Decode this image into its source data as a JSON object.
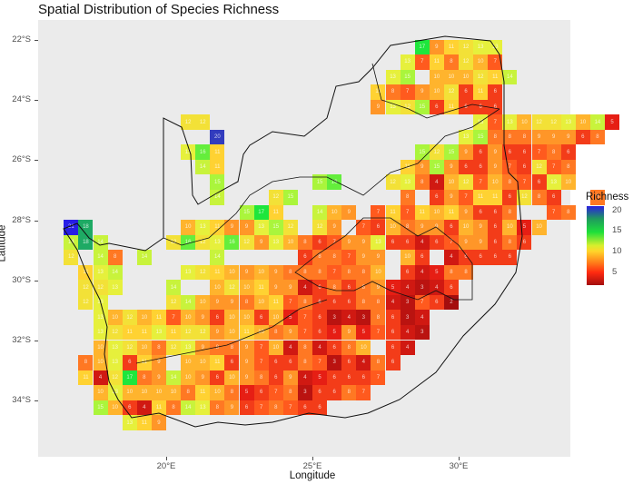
{
  "chart_data": {
    "type": "heatmap",
    "title": "Spatial Distribution of Species Richness",
    "xlabel": "Longitude",
    "ylabel": "Latitude",
    "x_ticks": [
      "20°E",
      "25°E",
      "30°E"
    ],
    "y_ticks": [
      "22°S",
      "24°S",
      "26°S",
      "28°S",
      "30°S",
      "32°S",
      "34°S"
    ],
    "xlim": [
      15.9,
      34.1
    ],
    "ylim_south": [
      21.3,
      35.8
    ],
    "cell_size_deg": 0.5,
    "legend": {
      "title": "Richness",
      "ticks": [
        5,
        10,
        15,
        20
      ],
      "colors_low_to_high": [
        "#a40e0e",
        "#ff2a10",
        "#ff7a1a",
        "#ffd52a",
        "#d8ef2d",
        "#1ee03a",
        "#1f9a5e",
        "#2a1fe0"
      ]
    },
    "grid_origin": {
      "lon_west": 16.5,
      "lat_south_top": 22.0
    },
    "rows": [
      {
        "lat": "22.0-22.5S",
        "start_col": 24,
        "values": [
          17,
          9,
          11,
          12,
          13,
          13
        ]
      },
      {
        "lat": "22.5-23.0S",
        "start_col": 23,
        "values": [
          13,
          7,
          11,
          8,
          12,
          10,
          7
        ]
      },
      {
        "lat": "23.0-23.5S",
        "start_col": 22,
        "values": [
          13,
          15,
          null,
          10,
          10,
          10,
          12,
          11,
          14
        ]
      },
      {
        "lat": "23.5-24.0S",
        "start_col": 21,
        "values": [
          11,
          8,
          7,
          9,
          10,
          12,
          6,
          11,
          6
        ]
      },
      {
        "lat": "24.0-24.5S",
        "start_col": 21,
        "values": [
          9,
          13,
          12,
          15,
          6,
          11,
          6,
          6,
          6
        ]
      },
      {
        "lat": "24.5-25.0S",
        "start_col": 8,
        "values": [
          12,
          12,
          null,
          null,
          null,
          null,
          null,
          null,
          null,
          null,
          null,
          null,
          null,
          null,
          null,
          null,
          null,
          null,
          null,
          null,
          13,
          7,
          13,
          10,
          12,
          12,
          13,
          10,
          14,
          5
        ]
      },
      {
        "lat": "25.0-25.5S",
        "start_col": 10,
        "values": [
          20,
          null,
          null,
          null,
          null,
          null,
          null,
          null,
          null,
          null,
          null,
          null,
          null,
          null,
          null,
          null,
          null,
          13,
          15,
          8,
          8,
          8,
          9,
          9,
          9,
          6,
          8
        ]
      },
      {
        "lat": "25.5-26.0S",
        "start_col": 8,
        "values": [
          13,
          16,
          11,
          null,
          null,
          null,
          null,
          null,
          null,
          null,
          null,
          null,
          null,
          null,
          null,
          null,
          15,
          12,
          15,
          9,
          6,
          9,
          6,
          6,
          7,
          8,
          6
        ]
      },
      {
        "lat": "26.0-26.5S",
        "start_col": 9,
        "values": [
          14,
          11,
          null,
          null,
          null,
          null,
          null,
          null,
          null,
          null,
          null,
          null,
          null,
          null,
          11,
          9,
          15,
          9,
          6,
          6,
          9,
          7,
          6,
          12,
          7,
          8
        ]
      },
      {
        "lat": "26.5-27.0S",
        "start_col": 10,
        "values": [
          15,
          null,
          null,
          null,
          null,
          null,
          null,
          15,
          16,
          null,
          null,
          null,
          12,
          13,
          8,
          4,
          10,
          12,
          7,
          10,
          8,
          7,
          6,
          13,
          10
        ]
      },
      {
        "lat": "27.0-27.5S",
        "start_col": 10,
        "values": [
          14,
          null,
          null,
          null,
          12,
          15,
          null,
          null,
          null,
          null,
          null,
          null,
          null,
          8,
          null,
          6,
          9,
          7,
          11,
          11,
          6,
          12,
          8,
          6,
          null,
          null,
          8
        ]
      },
      {
        "lat": "27.5-28.0S",
        "start_col": 12,
        "values": [
          15,
          17,
          11,
          null,
          null,
          14,
          10,
          9,
          null,
          7,
          11,
          7,
          11,
          10,
          11,
          9,
          6,
          6,
          8,
          null,
          null,
          7,
          8
        ]
      },
      {
        "lat": "28.0-28.5S",
        "start_col": 0,
        "values": [
          21,
          18,
          null,
          null,
          null,
          null,
          null,
          null,
          10,
          13,
          11,
          9,
          9,
          13,
          15,
          12,
          null,
          12,
          9,
          null,
          7,
          6,
          10,
          8,
          9,
          9,
          6,
          10,
          9,
          6,
          10,
          5,
          10
        ]
      },
      {
        "lat": "28.5-29.0S",
        "start_col": 0,
        "values": [
          14,
          18,
          14,
          null,
          null,
          null,
          null,
          12,
          16,
          12,
          13,
          16,
          12,
          9,
          13,
          10,
          8,
          6,
          7,
          9,
          9,
          13,
          6,
          6,
          4,
          6,
          7,
          9,
          9,
          6,
          8,
          6
        ]
      },
      {
        "lat": "29.0-29.5S",
        "start_col": 0,
        "values": [
          12,
          null,
          14,
          8,
          null,
          14,
          null,
          null,
          null,
          null,
          14,
          null,
          null,
          null,
          null,
          null,
          6,
          8,
          8,
          7,
          9,
          9,
          null,
          10,
          6,
          null,
          4,
          6,
          6,
          6,
          6
        ]
      },
      {
        "lat": "29.5-30.0S",
        "start_col": 1,
        "values": [
          11,
          13,
          14,
          null,
          null,
          null,
          null,
          13,
          12,
          11,
          10,
          9,
          10,
          9,
          8,
          8,
          8,
          7,
          8,
          8,
          10,
          null,
          6,
          4,
          5,
          8,
          8
        ]
      },
      {
        "lat": "30.0-30.5S",
        "start_col": 1,
        "values": [
          12,
          12,
          13,
          null,
          null,
          null,
          14,
          null,
          null,
          10,
          12,
          10,
          11,
          9,
          9,
          4,
          6,
          8,
          6,
          8,
          9,
          5,
          4,
          3,
          4,
          6
        ]
      },
      {
        "lat": "30.5-31.0S",
        "start_col": 1,
        "values": [
          12,
          13,
          null,
          null,
          null,
          null,
          12,
          14,
          10,
          9,
          9,
          8,
          10,
          11,
          7,
          8,
          6,
          6,
          6,
          8,
          8,
          4,
          3,
          7,
          6,
          2
        ]
      },
      {
        "lat": "31.0-31.5S",
        "start_col": 2,
        "values": [
          13,
          10,
          12,
          10,
          11,
          7,
          10,
          9,
          6,
          10,
          10,
          6,
          10,
          5,
          7,
          6,
          3,
          4,
          3,
          8,
          6,
          3,
          4
        ]
      },
      {
        "lat": "31.5-32.0S",
        "start_col": 2,
        "values": [
          13,
          12,
          11,
          11,
          13,
          11,
          12,
          12,
          9,
          10,
          11,
          10,
          8,
          9,
          7,
          6,
          5,
          9,
          5,
          7,
          6,
          4,
          3
        ]
      },
      {
        "lat": "32.0-32.5S",
        "start_col": 2,
        "values": [
          10,
          13,
          12,
          10,
          8,
          12,
          13,
          9,
          8,
          8,
          9,
          7,
          10,
          4,
          8,
          4,
          6,
          8,
          10,
          null,
          6,
          4
        ]
      },
      {
        "lat": "32.5-33.0S",
        "start_col": 1,
        "values": [
          8,
          10,
          13,
          6,
          11,
          9,
          null,
          10,
          10,
          11,
          6,
          9,
          7,
          6,
          6,
          8,
          7,
          3,
          6,
          4,
          8,
          6
        ]
      },
      {
        "lat": "33.0-33.5S",
        "start_col": 1,
        "values": [
          11,
          4,
          12,
          17,
          8,
          9,
          14,
          10,
          9,
          6,
          10,
          9,
          8,
          6,
          9,
          4,
          5,
          6,
          6,
          6,
          7
        ]
      },
      {
        "lat": "33.5-34.0S",
        "start_col": 2,
        "values": [
          10,
          13,
          10,
          10,
          10,
          10,
          8,
          11,
          10,
          8,
          5,
          6,
          7,
          8,
          3,
          6,
          6,
          8,
          7
        ]
      },
      {
        "lat": "34.0-34.5S",
        "start_col": 2,
        "values": [
          15,
          10,
          6,
          4,
          11,
          8,
          14,
          13,
          8,
          9,
          6,
          7,
          8,
          7,
          6,
          6
        ]
      },
      {
        "lat": "34.5-35.0S",
        "start_col": 4,
        "values": [
          13,
          11,
          9
        ]
      }
    ]
  }
}
